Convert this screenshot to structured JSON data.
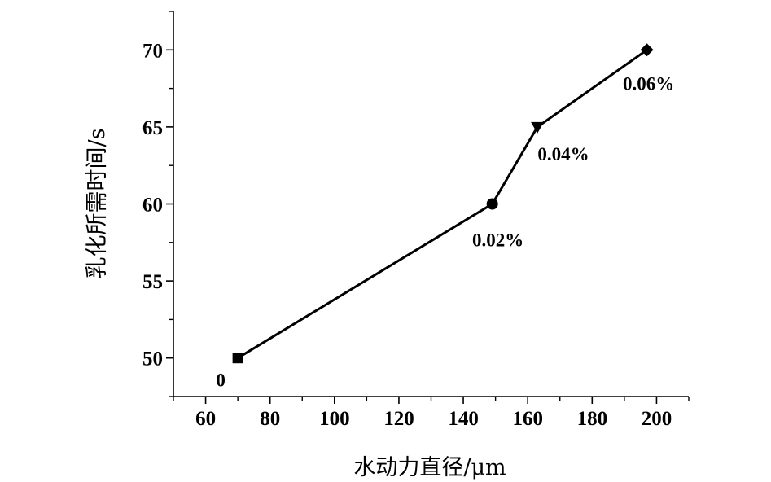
{
  "chart_data": {
    "type": "line",
    "title": "",
    "xlabel": "水动力直径/μm",
    "ylabel": "乳化所需时间/s",
    "xlim": [
      50,
      210
    ],
    "ylim": [
      47.5,
      72.5
    ],
    "x_ticks": [
      60,
      80,
      100,
      120,
      140,
      160,
      180,
      200
    ],
    "y_ticks": [
      50,
      55,
      60,
      65,
      70
    ],
    "grid": false,
    "series": [
      {
        "points": [
          {
            "x": 70,
            "y": 50,
            "marker": "square",
            "label": "0"
          },
          {
            "x": 149,
            "y": 60,
            "marker": "circle",
            "label": "0.02%"
          },
          {
            "x": 163,
            "y": 65,
            "marker": "triangle-down",
            "label": "0.04%"
          },
          {
            "x": 197,
            "y": 70,
            "marker": "diamond",
            "label": "0.06%"
          }
        ]
      }
    ]
  }
}
